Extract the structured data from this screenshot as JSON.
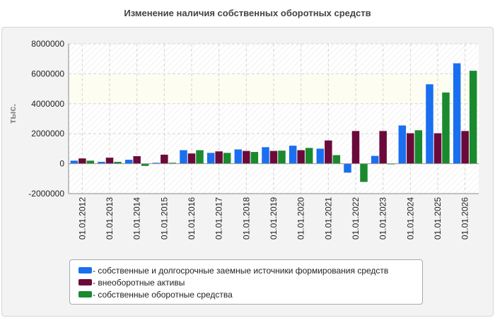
{
  "colors": {
    "series_1": "#1a6ff0",
    "series_2": "#6b0a3a",
    "series_3": "#1a8a2e"
  },
  "chart_data": {
    "type": "bar",
    "title": "Изменение наличия собственных оборотных средств",
    "ylabel": "тыс.",
    "xlabel": "",
    "ylim": [
      -2000000,
      8000000
    ],
    "yticks": [
      -2000000,
      0,
      2000000,
      4000000,
      6000000,
      8000000
    ],
    "grid": true,
    "legend_position": "bottom",
    "categories": [
      "01.01.2012",
      "01.01.2013",
      "01.01.2014",
      "01.01.2015",
      "01.01.2016",
      "01.01.2017",
      "01.01.2018",
      "01.01.2019",
      "01.01.2020",
      "01.01.2021",
      "01.01.2022",
      "01.01.2023",
      "01.01.2024",
      "01.01.2025",
      "01.01.2026"
    ],
    "series": [
      {
        "name": "собственные и долгосрочные заемные источники формирования средств",
        "values": [
          200000,
          120000,
          260000,
          60000,
          900000,
          720000,
          950000,
          1100000,
          1200000,
          1000000,
          -600000,
          520000,
          2550000,
          5300000,
          6700000
        ]
      },
      {
        "name": "внеоборотные активы",
        "values": [
          350000,
          400000,
          500000,
          600000,
          680000,
          820000,
          850000,
          850000,
          900000,
          1550000,
          2180000,
          2180000,
          2030000,
          2030000,
          2180000
        ]
      },
      {
        "name": "собственные оборотные средства",
        "values": [
          200000,
          120000,
          -150000,
          60000,
          900000,
          720000,
          780000,
          870000,
          1050000,
          570000,
          -1220000,
          -40000,
          2230000,
          4750000,
          6200000
        ]
      }
    ]
  }
}
